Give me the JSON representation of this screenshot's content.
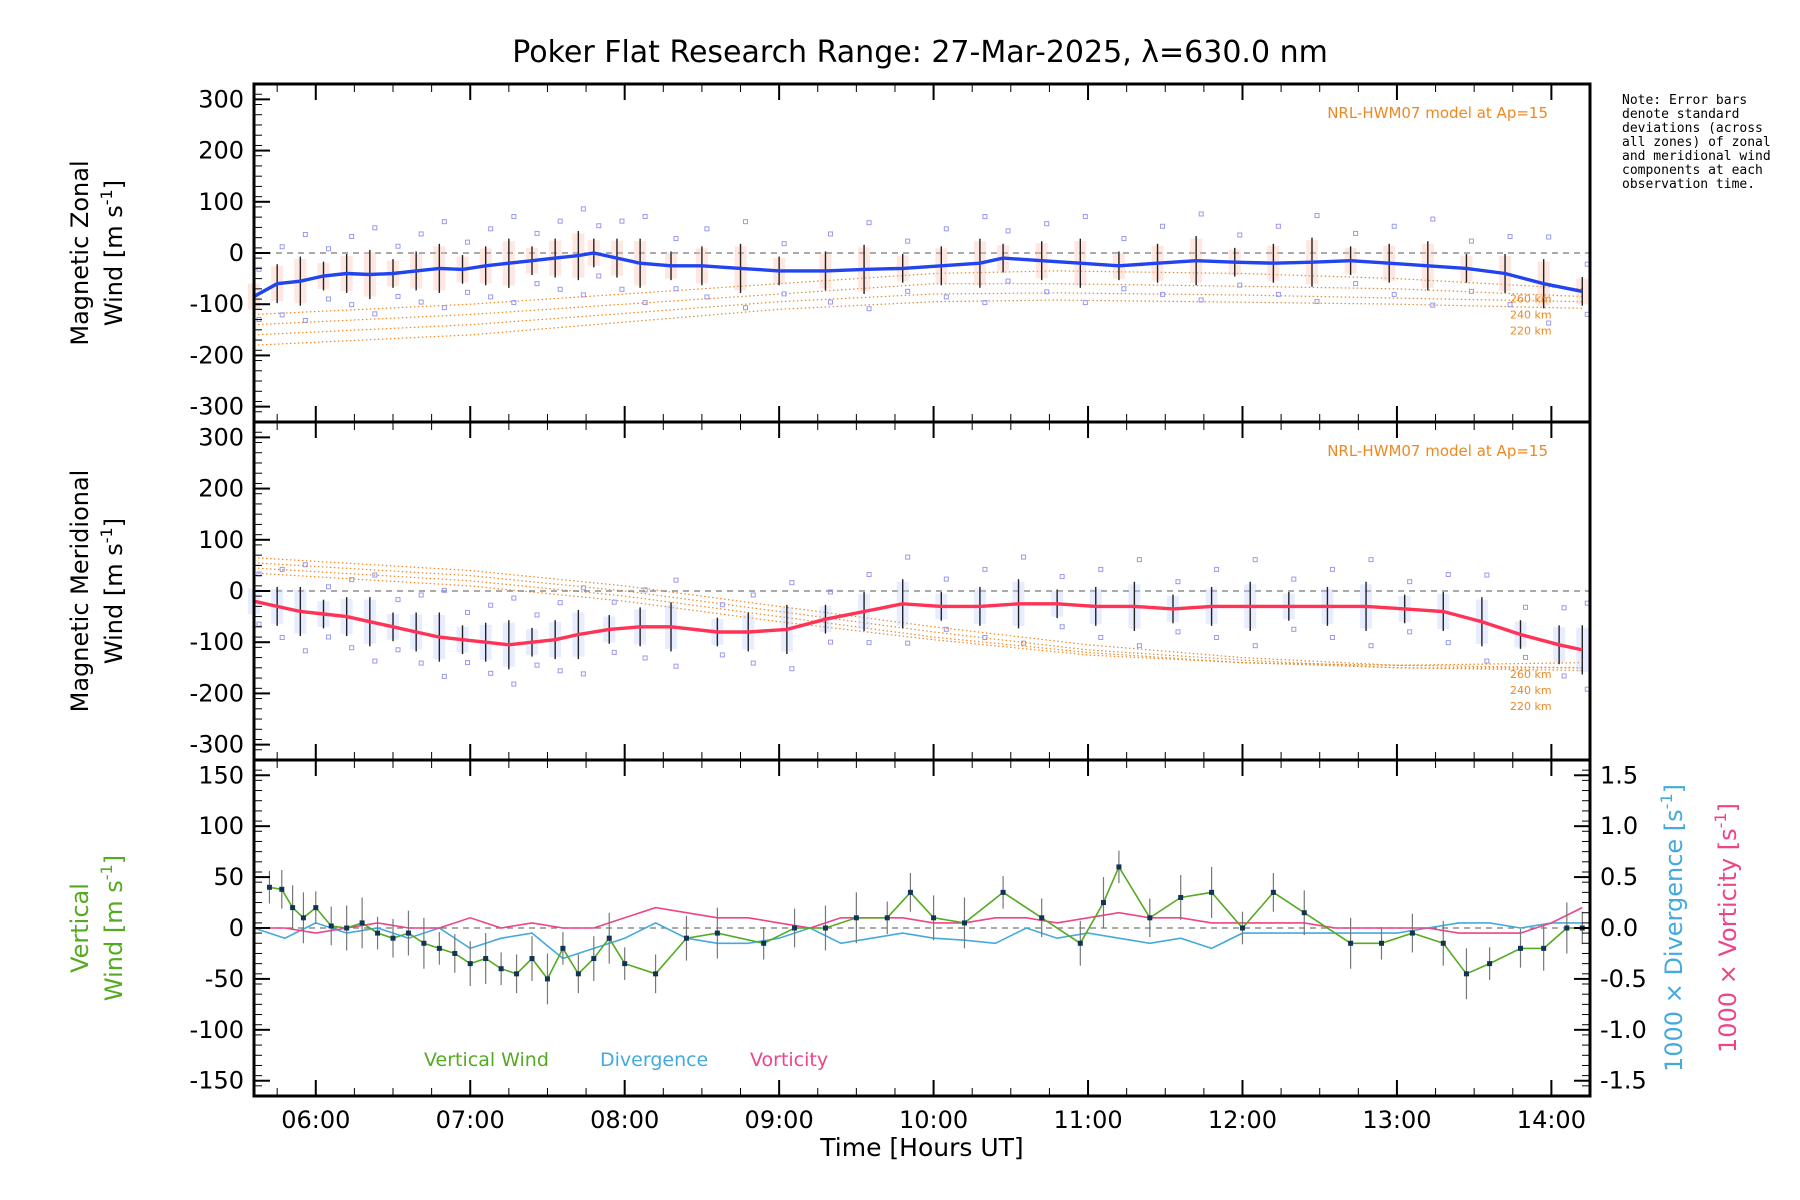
{
  "title": "Poker Flat Research Range: 27-Mar-2025, λ=630.0 nm",
  "note": "Note: Error bars denote standard deviations (across all zones) of zonal and meridional wind components at each observation time.",
  "colors": {
    "zonal": "#2244ee",
    "meridional": "#ff3355",
    "vertical": "#55aa22",
    "divergence": "#44aadd",
    "vorticity": "#ee4488",
    "model": "#ee8822",
    "scatter": "#9999ee",
    "errorbar": "#222222"
  },
  "chart_data": [
    {
      "id": "zonal",
      "type": "line",
      "ylabel_line1": "Magnetic Zonal",
      "ylabel_line2": "Wind [m s",
      "ylabel_exp": "-1",
      "ylabel_close": "]",
      "ylim": [
        -330,
        330
      ],
      "yticks": [
        300,
        200,
        100,
        0,
        -100,
        -200,
        -300
      ],
      "model_label": "NRL-HWM07 model at Ap=15",
      "model_alt_labels": [
        "260 km",
        "240 km",
        "220 km"
      ],
      "model_curves": [
        {
          "x": [
            5.6,
            7,
            8,
            9,
            10,
            10.8,
            12,
            13,
            14.2
          ],
          "y": [
            -140,
            -120,
            -100,
            -80,
            -60,
            -60,
            -65,
            -70,
            -85
          ]
        },
        {
          "x": [
            5.6,
            7,
            8,
            9,
            10,
            10.8,
            12,
            13,
            14.2
          ],
          "y": [
            -160,
            -140,
            -118,
            -95,
            -80,
            -78,
            -82,
            -88,
            -95
          ]
        },
        {
          "x": [
            5.6,
            7,
            8,
            9,
            10,
            10.8,
            12,
            13,
            14.2
          ],
          "y": [
            -180,
            -160,
            -135,
            -110,
            -95,
            -92,
            -96,
            -100,
            -108
          ]
        },
        {
          "x": [
            5.6,
            7,
            8,
            9,
            10,
            10.8,
            12,
            13,
            14.2
          ],
          "y": [
            -120,
            -100,
            -80,
            -60,
            -40,
            -35,
            -40,
            -50,
            -70
          ]
        }
      ],
      "series": [
        {
          "name": "Zonal wind",
          "x": [
            5.6,
            5.75,
            5.9,
            6.05,
            6.2,
            6.35,
            6.5,
            6.65,
            6.8,
            6.95,
            7.1,
            7.25,
            7.4,
            7.55,
            7.7,
            7.8,
            7.95,
            8.1,
            8.3,
            8.5,
            8.75,
            9.0,
            9.3,
            9.55,
            9.8,
            10.05,
            10.3,
            10.45,
            10.7,
            10.95,
            11.2,
            11.45,
            11.7,
            11.95,
            12.2,
            12.45,
            12.7,
            12.95,
            13.2,
            13.45,
            13.7,
            13.95,
            14.2
          ],
          "y": [
            -85,
            -60,
            -55,
            -45,
            -40,
            -42,
            -40,
            -35,
            -30,
            -32,
            -25,
            -20,
            -15,
            -10,
            -5,
            0,
            -10,
            -20,
            -25,
            -25,
            -30,
            -35,
            -35,
            -32,
            -30,
            -25,
            -20,
            -10,
            -15,
            -20,
            -25,
            -20,
            -15,
            -18,
            -20,
            -18,
            -15,
            -20,
            -25,
            -30,
            -40,
            -60,
            -75
          ]
        }
      ]
    },
    {
      "id": "meridional",
      "type": "line",
      "ylabel_line1": "Magnetic Meridional",
      "ylabel_line2": "Wind [m s",
      "ylabel_exp": "-1",
      "ylabel_close": "]",
      "ylim": [
        -330,
        330
      ],
      "yticks": [
        300,
        200,
        100,
        0,
        -100,
        -200,
        -300
      ],
      "model_label": "NRL-HWM07 model at Ap=15",
      "model_alt_labels": [
        "260 km",
        "240 km",
        "220 km"
      ],
      "model_curves": [
        {
          "x": [
            5.6,
            7,
            8,
            9,
            10,
            11,
            12,
            13,
            14.2
          ],
          "y": [
            65,
            40,
            10,
            -30,
            -70,
            -105,
            -130,
            -145,
            -150
          ]
        },
        {
          "x": [
            5.6,
            7,
            8,
            9,
            10,
            11,
            12,
            13,
            14.2
          ],
          "y": [
            55,
            30,
            0,
            -40,
            -80,
            -115,
            -135,
            -150,
            -155
          ]
        },
        {
          "x": [
            5.6,
            7,
            8,
            9,
            10,
            11,
            12,
            13,
            14.2
          ],
          "y": [
            45,
            20,
            -10,
            -50,
            -90,
            -120,
            -140,
            -150,
            -150
          ]
        },
        {
          "x": [
            5.6,
            7,
            8,
            9,
            10,
            11,
            12,
            13,
            14.2
          ],
          "y": [
            35,
            10,
            -20,
            -60,
            -95,
            -125,
            -140,
            -145,
            -140
          ]
        }
      ],
      "series": [
        {
          "name": "Meridional wind",
          "x": [
            5.6,
            5.75,
            5.9,
            6.05,
            6.2,
            6.35,
            6.5,
            6.65,
            6.8,
            6.95,
            7.1,
            7.25,
            7.4,
            7.55,
            7.7,
            7.9,
            8.1,
            8.3,
            8.6,
            8.8,
            9.05,
            9.3,
            9.55,
            9.8,
            10.05,
            10.3,
            10.55,
            10.8,
            11.05,
            11.3,
            11.55,
            11.8,
            12.05,
            12.3,
            12.55,
            12.8,
            13.05,
            13.3,
            13.55,
            13.8,
            14.05,
            14.2
          ],
          "y": [
            -20,
            -30,
            -40,
            -45,
            -50,
            -60,
            -70,
            -80,
            -90,
            -95,
            -100,
            -105,
            -100,
            -95,
            -85,
            -75,
            -70,
            -70,
            -80,
            -80,
            -75,
            -55,
            -40,
            -25,
            -30,
            -30,
            -25,
            -25,
            -30,
            -30,
            -35,
            -30,
            -30,
            -30,
            -30,
            -30,
            -35,
            -40,
            -60,
            -85,
            -105,
            -115
          ]
        }
      ]
    },
    {
      "id": "vertical",
      "type": "line",
      "ylabel_line1": "Vertical",
      "ylabel_line2": "Wind [m s",
      "ylabel_exp": "-1",
      "ylabel_close": "]",
      "ylim": [
        -165,
        165
      ],
      "yticks": [
        150,
        100,
        50,
        0,
        -50,
        -100,
        -150
      ],
      "right_axis": {
        "ylim": [
          -1.65,
          1.65
        ],
        "yticks": [
          1.5,
          1.0,
          0.5,
          0.0,
          -0.5,
          -1.0,
          -1.5
        ],
        "ylabel_div": "1000 × Divergence [s",
        "ylabel_vor": "1000 × Vorticity [s",
        "ylabel_exp": "-1",
        "ylabel_close": "]"
      },
      "xlabel": "Time [Hours UT]",
      "xlim": [
        5.6,
        14.25
      ],
      "xticks": [
        6,
        7,
        8,
        9,
        10,
        11,
        12,
        13,
        14
      ],
      "xtick_labels": [
        "06:00",
        "07:00",
        "08:00",
        "09:00",
        "10:00",
        "11:00",
        "12:00",
        "13:00",
        "14:00"
      ],
      "legend": [
        "Vertical Wind",
        "Divergence",
        "Vorticity"
      ],
      "series": [
        {
          "name": "Vertical Wind",
          "x": [
            5.7,
            5.78,
            5.85,
            5.92,
            6.0,
            6.1,
            6.2,
            6.3,
            6.4,
            6.5,
            6.6,
            6.7,
            6.8,
            6.9,
            7.0,
            7.1,
            7.2,
            7.3,
            7.4,
            7.5,
            7.6,
            7.7,
            7.8,
            7.9,
            8.0,
            8.2,
            8.4,
            8.6,
            8.9,
            9.1,
            9.3,
            9.5,
            9.7,
            9.85,
            10.0,
            10.2,
            10.45,
            10.7,
            10.95,
            11.1,
            11.2,
            11.4,
            11.6,
            11.8,
            12.0,
            12.2,
            12.4,
            12.7,
            12.9,
            13.1,
            13.3,
            13.45,
            13.6,
            13.8,
            13.95,
            14.1,
            14.2
          ],
          "y": [
            40,
            38,
            20,
            10,
            20,
            2,
            0,
            5,
            -5,
            -10,
            -5,
            -15,
            -20,
            -25,
            -35,
            -30,
            -40,
            -45,
            -30,
            -50,
            -20,
            -45,
            -30,
            -10,
            -35,
            -45,
            -10,
            -5,
            -15,
            0,
            0,
            10,
            10,
            35,
            10,
            5,
            35,
            10,
            -15,
            25,
            60,
            10,
            30,
            35,
            0,
            35,
            15,
            -15,
            -15,
            -5,
            -15,
            -45,
            -35,
            -20,
            -20,
            0,
            0
          ]
        },
        {
          "name": "Divergence",
          "x": [
            5.6,
            5.8,
            6.0,
            6.2,
            6.4,
            6.6,
            6.8,
            7.0,
            7.2,
            7.4,
            7.6,
            7.8,
            8.0,
            8.2,
            8.4,
            8.6,
            8.8,
            9.0,
            9.2,
            9.4,
            9.6,
            9.8,
            10.0,
            10.2,
            10.4,
            10.6,
            10.8,
            11.0,
            11.2,
            11.4,
            11.6,
            11.8,
            12.0,
            12.2,
            12.4,
            12.6,
            12.8,
            13.0,
            13.2,
            13.4,
            13.6,
            13.8,
            14.0,
            14.2
          ],
          "y": [
            0.0,
            -0.1,
            0.05,
            -0.05,
            0.0,
            -0.1,
            0.0,
            -0.2,
            -0.1,
            -0.05,
            -0.3,
            -0.2,
            -0.1,
            0.05,
            -0.1,
            -0.15,
            -0.15,
            -0.1,
            0.0,
            -0.15,
            -0.1,
            -0.05,
            -0.1,
            -0.12,
            -0.15,
            0.0,
            -0.1,
            -0.05,
            -0.1,
            -0.15,
            -0.1,
            -0.2,
            -0.05,
            -0.05,
            -0.05,
            -0.05,
            -0.05,
            -0.05,
            0.0,
            0.05,
            0.05,
            0.0,
            0.05,
            0.05
          ]
        },
        {
          "name": "Vorticity",
          "x": [
            5.6,
            5.8,
            6.0,
            6.2,
            6.4,
            6.6,
            6.8,
            7.0,
            7.2,
            7.4,
            7.6,
            7.8,
            8.0,
            8.2,
            8.4,
            8.6,
            8.8,
            9.0,
            9.2,
            9.4,
            9.6,
            9.8,
            10.0,
            10.2,
            10.4,
            10.6,
            10.8,
            11.0,
            11.2,
            11.4,
            11.6,
            11.8,
            12.0,
            12.2,
            12.4,
            12.6,
            12.8,
            13.0,
            13.2,
            13.4,
            13.6,
            13.8,
            14.0,
            14.2
          ],
          "y": [
            0.0,
            0.0,
            -0.05,
            0.0,
            0.05,
            0.0,
            0.0,
            0.1,
            0.0,
            0.05,
            0.0,
            0.0,
            0.1,
            0.2,
            0.15,
            0.1,
            0.1,
            0.05,
            0.0,
            0.1,
            0.1,
            0.1,
            0.05,
            0.05,
            0.1,
            0.1,
            0.05,
            0.1,
            0.15,
            0.1,
            0.1,
            0.05,
            0.05,
            0.05,
            0.05,
            0.0,
            0.0,
            0.0,
            0.0,
            -0.05,
            -0.05,
            -0.05,
            0.05,
            0.2
          ]
        }
      ]
    }
  ]
}
